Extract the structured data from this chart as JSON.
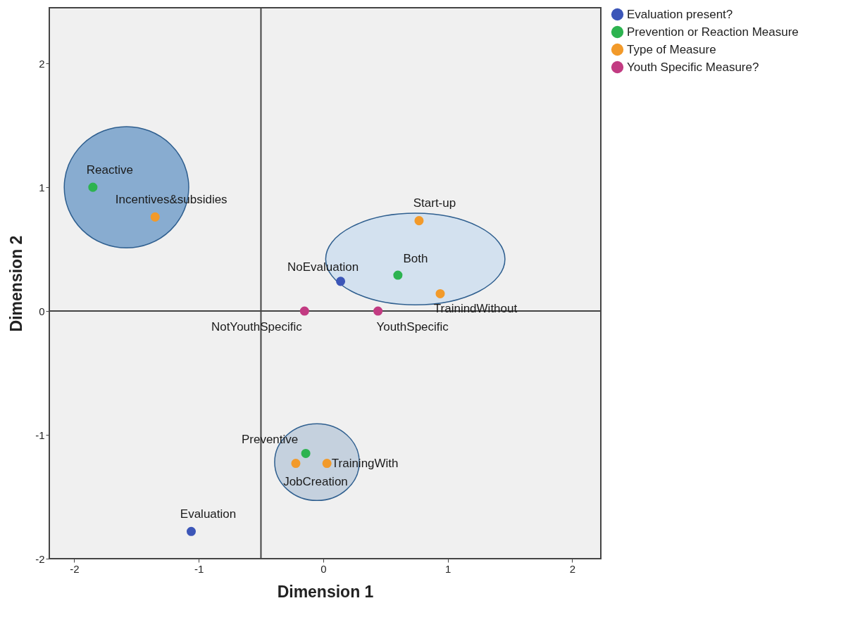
{
  "chart_data": {
    "type": "scatter",
    "xlabel": "Dimension 1",
    "ylabel": "Dimension 2",
    "xlim": [
      -2.2,
      2.23
    ],
    "ylim": [
      -2,
      2.45
    ],
    "xticks": [
      -2,
      -1,
      0,
      1,
      2
    ],
    "yticks": [
      -2,
      -1,
      0,
      1,
      2
    ],
    "grid": false,
    "legend": "top right",
    "marker": "circle",
    "series": [
      {
        "name": "Evaluation present?",
        "color": "#3c56b8",
        "x": [
          0.14,
          -1.06
        ],
        "values": [
          0.24,
          -1.78
        ]
      },
      {
        "name": "Prevention or Reaction Measure",
        "color": "#2db350",
        "x": [
          -1.85,
          0.6,
          -0.14
        ],
        "values": [
          1.0,
          0.29,
          -1.15
        ]
      },
      {
        "name": "Type of Measure",
        "color": "#f29a2a",
        "x": [
          -1.35,
          0.77,
          0.94,
          0.03,
          -0.22
        ],
        "values": [
          0.76,
          0.73,
          0.14,
          -1.23,
          -1.23
        ]
      },
      {
        "name": "Youth Specific Measure?",
        "color": "#c23b82",
        "x": [
          -0.15,
          0.44
        ],
        "values": [
          0,
          0
        ]
      }
    ],
    "ref_lines": [
      {
        "axis": "x",
        "value": -0.5,
        "color": "#444444"
      },
      {
        "axis": "y",
        "value": 0,
        "color": "#444444"
      }
    ],
    "annotations": [
      {
        "text": "NoEvaluation",
        "x": 0.14,
        "y": 0.24
      },
      {
        "text": "Evaluation",
        "x": -1.06,
        "y": -1.78
      },
      {
        "text": "Reactive",
        "x": -1.85,
        "y": 1.0
      },
      {
        "text": "Both",
        "x": 0.6,
        "y": 0.29
      },
      {
        "text": "Preventive",
        "x": -0.14,
        "y": -1.15
      },
      {
        "text": "Incentives&subsidies",
        "x": -1.35,
        "y": 0.76
      },
      {
        "text": "Start-up",
        "x": 0.77,
        "y": 0.73
      },
      {
        "text": "TrainindWithout",
        "x": 0.94,
        "y": 0.14
      },
      {
        "text": "TrainingWith",
        "x": 0.03,
        "y": -1.23
      },
      {
        "text": "JobCreation",
        "x": -0.22,
        "y": -1.23
      },
      {
        "text": "NotYouthSpecific",
        "x": -0.15,
        "y": 0
      },
      {
        "text": "YouthSpecific",
        "x": 0.44,
        "y": 0
      }
    ]
  }
}
